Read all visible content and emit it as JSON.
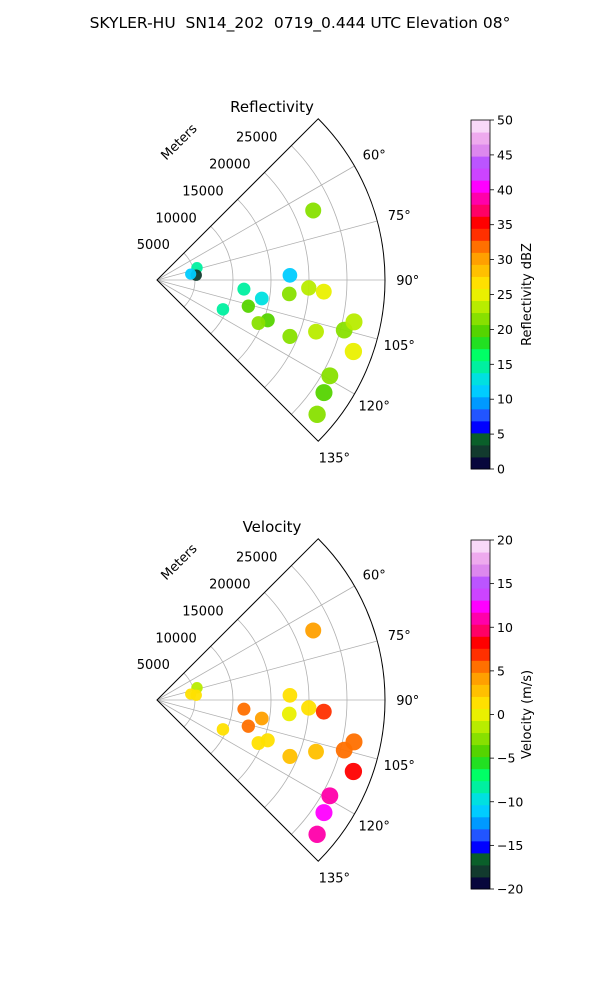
{
  "figure_title": "SKYLER-HU  SN14_202  0719_0.444 UTC Elevation 08°",
  "chart_data": [
    {
      "type": "polar-sector",
      "title": "Reflectivity",
      "radial_label": "Meters",
      "radial_ticks": [
        "5000",
        "10000",
        "15000",
        "20000",
        "25000"
      ],
      "radial_tick_values": [
        5000,
        10000,
        15000,
        20000,
        25000
      ],
      "rmax": 30000,
      "angle_ticks": [
        "60°",
        "75°",
        "90°",
        "105°",
        "120°",
        "135°"
      ],
      "angle_tick_values": [
        60,
        75,
        90,
        105,
        120,
        135
      ],
      "angle_range": [
        45,
        135
      ],
      "colorbar": {
        "label": "Reflectivity dBZ",
        "min": 0,
        "max": 50,
        "ticks": [
          "0",
          "5",
          "10",
          "15",
          "20",
          "25",
          "30",
          "35",
          "40",
          "45",
          "50"
        ],
        "tick_values": [
          0,
          5,
          10,
          15,
          20,
          25,
          30,
          35,
          40,
          45,
          50
        ],
        "colors": [
          "#08073c",
          "#123a2e",
          "#0a5f2a",
          "#0000ff",
          "#2255ff",
          "#0099ff",
          "#00ccff",
          "#00e0e0",
          "#00f0a0",
          "#00ff66",
          "#22e022",
          "#55d400",
          "#88e000",
          "#b8ec00",
          "#eaf000",
          "#ffe000",
          "#ffc000",
          "#ffa000",
          "#ff7000",
          "#ff3000",
          "#ff0000",
          "#ff0066",
          "#ff00aa",
          "#ff00ff",
          "#cc44ff",
          "#bb55ff",
          "#dd88ee",
          "#eeaaee",
          "#f8d8f8"
        ]
      },
      "echoes": [
        {
          "range": 22500,
          "azimuth": 66,
          "value": 22
        },
        {
          "range": 5500,
          "azimuth": 73,
          "value": 14
        },
        {
          "range": 5200,
          "azimuth": 83,
          "value": 3
        },
        {
          "range": 4500,
          "azimuth": 80,
          "value": 12
        },
        {
          "range": 17500,
          "azimuth": 88,
          "value": 11
        },
        {
          "range": 20000,
          "azimuth": 93,
          "value": 24
        },
        {
          "range": 22000,
          "azimuth": 94,
          "value": 25
        },
        {
          "range": 17500,
          "azimuth": 96,
          "value": 22
        },
        {
          "range": 11500,
          "azimuth": 96,
          "value": 15
        },
        {
          "range": 14000,
          "azimuth": 100,
          "value": 13
        },
        {
          "range": 12500,
          "azimuth": 106,
          "value": 19
        },
        {
          "range": 15500,
          "azimuth": 110,
          "value": 20
        },
        {
          "range": 14500,
          "azimuth": 113,
          "value": 21
        },
        {
          "range": 19000,
          "azimuth": 113,
          "value": 22
        },
        {
          "range": 9500,
          "azimuth": 114,
          "value": 14
        },
        {
          "range": 22000,
          "azimuth": 108,
          "value": 24
        },
        {
          "range": 25500,
          "azimuth": 105,
          "value": 21
        },
        {
          "range": 26500,
          "azimuth": 102,
          "value": 23
        },
        {
          "range": 27500,
          "azimuth": 110,
          "value": 25
        },
        {
          "range": 26000,
          "azimuth": 119,
          "value": 22
        },
        {
          "range": 26500,
          "azimuth": 124,
          "value": 20
        },
        {
          "range": 27500,
          "azimuth": 130,
          "value": 22
        }
      ]
    },
    {
      "type": "polar-sector",
      "title": "Velocity",
      "radial_label": "Meters",
      "radial_ticks": [
        "5000",
        "10000",
        "15000",
        "20000",
        "25000"
      ],
      "radial_tick_values": [
        5000,
        10000,
        15000,
        20000,
        25000
      ],
      "rmax": 30000,
      "angle_ticks": [
        "60°",
        "75°",
        "90°",
        "105°",
        "120°",
        "135°"
      ],
      "angle_tick_values": [
        60,
        75,
        90,
        105,
        120,
        135
      ],
      "angle_range": [
        45,
        135
      ],
      "colorbar": {
        "label": "Velocity (m/s)",
        "min": -20,
        "max": 20,
        "ticks": [
          "−20",
          "−15",
          "−10",
          "−5",
          "0",
          "5",
          "10",
          "15",
          "20"
        ],
        "tick_values": [
          -20,
          -15,
          -10,
          -5,
          0,
          5,
          10,
          15,
          20
        ],
        "colors": [
          "#08073c",
          "#123a2e",
          "#0a5f2a",
          "#0000ff",
          "#2255ff",
          "#0099ff",
          "#00ccff",
          "#00e0e0",
          "#00f0a0",
          "#00ff66",
          "#22e022",
          "#55d400",
          "#88e000",
          "#b8ec00",
          "#eaf000",
          "#ffe000",
          "#ffc000",
          "#ffa000",
          "#ff7000",
          "#ff3000",
          "#ff0000",
          "#ff0066",
          "#ff00aa",
          "#ff00ff",
          "#cc44ff",
          "#bb55ff",
          "#dd88ee",
          "#eeaaee",
          "#f8d8f8"
        ]
      },
      "echoes": [
        {
          "range": 22500,
          "azimuth": 66,
          "value": 4
        },
        {
          "range": 5500,
          "azimuth": 73,
          "value": -2
        },
        {
          "range": 5200,
          "azimuth": 83,
          "value": 2
        },
        {
          "range": 4500,
          "azimuth": 80,
          "value": 1
        },
        {
          "range": 17500,
          "azimuth": 88,
          "value": 2
        },
        {
          "range": 20000,
          "azimuth": 93,
          "value": 1
        },
        {
          "range": 22000,
          "azimuth": 94,
          "value": 7
        },
        {
          "range": 17500,
          "azimuth": 96,
          "value": 0
        },
        {
          "range": 11500,
          "azimuth": 96,
          "value": 5
        },
        {
          "range": 14000,
          "azimuth": 100,
          "value": 4
        },
        {
          "range": 12500,
          "azimuth": 106,
          "value": 6
        },
        {
          "range": 15500,
          "azimuth": 110,
          "value": 2
        },
        {
          "range": 14500,
          "azimuth": 113,
          "value": 1
        },
        {
          "range": 19000,
          "azimuth": 113,
          "value": 3
        },
        {
          "range": 9500,
          "azimuth": 114,
          "value": 1
        },
        {
          "range": 22000,
          "azimuth": 108,
          "value": 3
        },
        {
          "range": 25500,
          "azimuth": 105,
          "value": 6
        },
        {
          "range": 26500,
          "azimuth": 102,
          "value": 5
        },
        {
          "range": 27500,
          "azimuth": 110,
          "value": 8
        },
        {
          "range": 26000,
          "azimuth": 119,
          "value": 11
        },
        {
          "range": 26500,
          "azimuth": 124,
          "value": 13
        },
        {
          "range": 27500,
          "azimuth": 130,
          "value": 11
        }
      ]
    }
  ]
}
